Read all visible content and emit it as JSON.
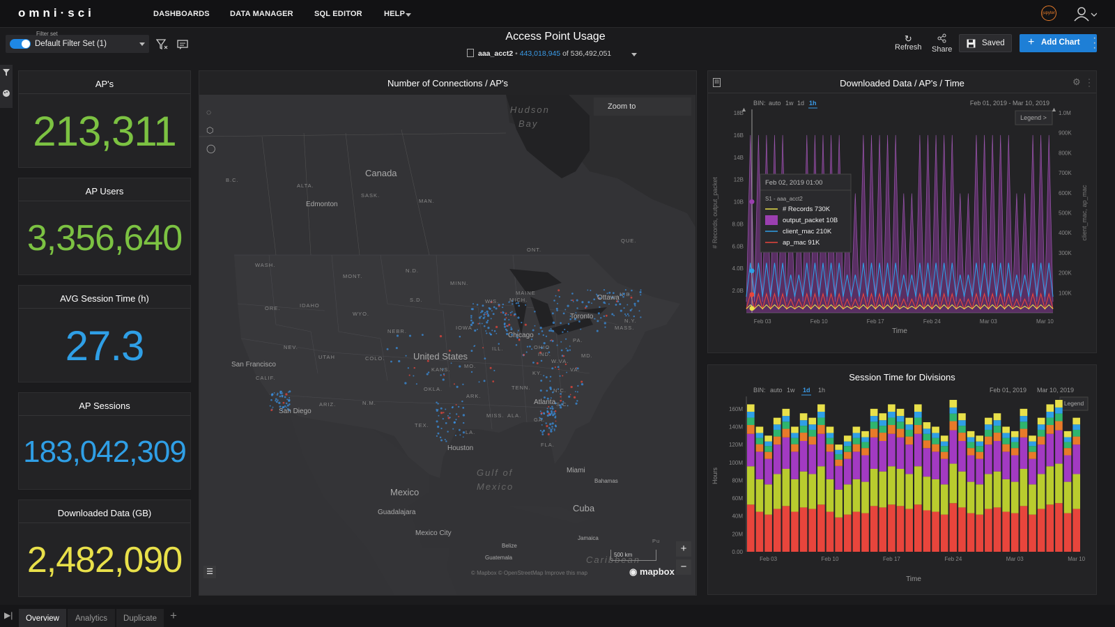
{
  "app": {
    "logo": "omni·sci"
  },
  "nav": {
    "dashboards": "DASHBOARDS",
    "data_manager": "DATA MANAGER",
    "sql_editor": "SQL EDITOR",
    "help": "HELP"
  },
  "user": {
    "jupyter": "jupyter"
  },
  "filter": {
    "label": "Filter set",
    "value": "Default Filter Set (1)",
    "enabled": true
  },
  "dashboard": {
    "title": "Access Point Usage",
    "table": "aaa_acct2",
    "filtered_count": "443,018,945",
    "of_text": "of",
    "total_count": "536,492,051"
  },
  "toolbar": {
    "refresh": "Refresh",
    "share": "Share",
    "saved": "Saved",
    "add_chart": "Add Chart"
  },
  "kpis": [
    {
      "title": "AP's",
      "value": "213,311",
      "color": "#7cc242"
    },
    {
      "title": "AP Users",
      "value": "3,356,640",
      "color": "#7cc242"
    },
    {
      "title": "AVG Session Time (h)",
      "value": "27.3",
      "color": "#2f9fe6"
    },
    {
      "title": "AP Sessions",
      "value": "183,042,309",
      "color": "#2f9fe6"
    },
    {
      "title": "Downloaded Data (GB)",
      "value": "2,482,090",
      "color": "#e8e04a"
    }
  ],
  "map": {
    "title": "Number of Connections / AP's",
    "zoom_to": "Zoom to",
    "scale": "500 km",
    "attribution": "© Mapbox   © OpenStreetMap   Improve this map",
    "brand": "mapbox",
    "cities": [
      "Edmonton",
      "Ottawa",
      "Toronto",
      "Chicago",
      "San Francisco",
      "San Diego",
      "Houston",
      "Atlanta",
      "Miami",
      "Guadalajara",
      "Mexico City",
      "Bahamas",
      "Jamaica",
      "Belize",
      "Guatemala"
    ],
    "countries": [
      "Canada",
      "United States",
      "Mexico",
      "Cuba"
    ],
    "water": [
      "Hudson",
      "Bay",
      "Gulf of",
      "Mexico",
      "Caribbean"
    ],
    "states": [
      "B.C.",
      "ALTA.",
      "SASK.",
      "MAN.",
      "ONT.",
      "QUE.",
      "WASH.",
      "MONT.",
      "N.D.",
      "MINN.",
      "MAINE",
      "N.B.",
      "ORE.",
      "IDAHO",
      "S.D.",
      "WIS.",
      "MICH.",
      "WYO.",
      "NEBR.",
      "IOWA",
      "N.Y.",
      "MASS.",
      "NEV.",
      "UTAH",
      "COLO.",
      "ILL.",
      "IND.",
      "OHIO",
      "PA.",
      "CALIF.",
      "KANS.",
      "MO.",
      "W.VA.",
      "MD.",
      "KY.",
      "VA.",
      "ARIZ.",
      "N.M.",
      "OKLA.",
      "ARK.",
      "TENN.",
      "N.C.",
      "S.C.",
      "TEX.",
      "LA.",
      "MISS.",
      "ALA.",
      "GA.",
      "FLA.",
      "Pu"
    ]
  },
  "chart_data": [
    {
      "type": "line",
      "title": "Downloaded Data / AP's / Time",
      "bin_label": "BIN:",
      "bin_options": [
        "auto",
        "1w",
        "1d",
        "1h"
      ],
      "bin_selected": "1h",
      "date_range": "Feb 01, 2019 - Mar 10, 2019",
      "legend_button": "Legend >",
      "xlabel": "Time",
      "ylabel_left": "# Records, output_packet",
      "ylabel_right": "client_mac, ap_mac",
      "x_ticks": [
        "Feb 03",
        "Feb 10",
        "Feb 17",
        "Feb 24",
        "Mar 03",
        "Mar 10"
      ],
      "y_left_ticks": [
        "2.0B",
        "4.0B",
        "6.0B",
        "8.0B",
        "10B",
        "12B",
        "14B",
        "16B",
        "18B"
      ],
      "y_right_ticks": [
        "100K",
        "200K",
        "300K",
        "400K",
        "500K",
        "600K",
        "700K",
        "800K",
        "900K",
        "1.0M"
      ],
      "ylim_left": [
        0,
        18
      ],
      "ylim_right": [
        0,
        1000
      ],
      "series": [
        {
          "name": "output_packet",
          "unit": "B",
          "color": "#9b3fb0",
          "day_peak": 16,
          "night_min": 1.0
        },
        {
          "name": "client_mac",
          "unit": "K",
          "color": "#2f9fe6",
          "day_peak": 250,
          "night_min": 80
        },
        {
          "name": "ap_mac",
          "unit": "K",
          "color": "#e8453c",
          "day_peak": 95,
          "night_min": 20
        },
        {
          "name": "# Records",
          "unit": "K",
          "color": "#e8e04a",
          "day_peak": 40,
          "night_min": 20
        }
      ],
      "tooltip": {
        "time": "Feb 02, 2019 01:00",
        "source": "S1 - aaa_acct2",
        "items": [
          {
            "name": "# Records",
            "value": "730K",
            "color": "#e8e04a"
          },
          {
            "name": "output_packet",
            "value": "10B",
            "color": "#9b3fb0"
          },
          {
            "name": "client_mac",
            "value": "210K",
            "color": "#2f9fe6"
          },
          {
            "name": "ap_mac",
            "value": "91K",
            "color": "#e8453c"
          }
        ]
      }
    },
    {
      "type": "bar",
      "stacked": true,
      "title": "Session Time for Divisions",
      "bin_label": "BIN:",
      "bin_options": [
        "auto",
        "1w",
        "1d",
        "1h"
      ],
      "bin_selected": "1d",
      "date_range_start": "Feb 01, 2019",
      "date_range_end": "Mar 10, 2019",
      "legend_button": "Legend",
      "xlabel": "Time",
      "ylabel": "Hours",
      "x_ticks": [
        "Feb 03",
        "Feb 10",
        "Feb 17",
        "Feb 24",
        "Mar 03",
        "Mar 10"
      ],
      "y_ticks": [
        "0.00",
        "20M",
        "40M",
        "60M",
        "80M",
        "100M",
        "120M",
        "140M",
        "160M"
      ],
      "ylim": [
        0,
        170
      ],
      "series_colors": [
        "#e8453c",
        "#b9cc2e",
        "#a23ac2",
        "#e87a2a",
        "#2fb56e",
        "#2f9fe6",
        "#e8e04a"
      ],
      "totals": [
        165,
        140,
        130,
        150,
        160,
        140,
        155,
        150,
        165,
        140,
        120,
        130,
        140,
        135,
        160,
        155,
        165,
        160,
        150,
        165,
        145,
        140,
        130,
        170,
        155,
        135,
        130,
        150,
        155,
        140,
        135,
        160,
        130,
        150,
        165,
        170,
        135,
        150
      ]
    }
  ],
  "tabs": [
    "Overview",
    "Analytics",
    "Duplicate"
  ]
}
